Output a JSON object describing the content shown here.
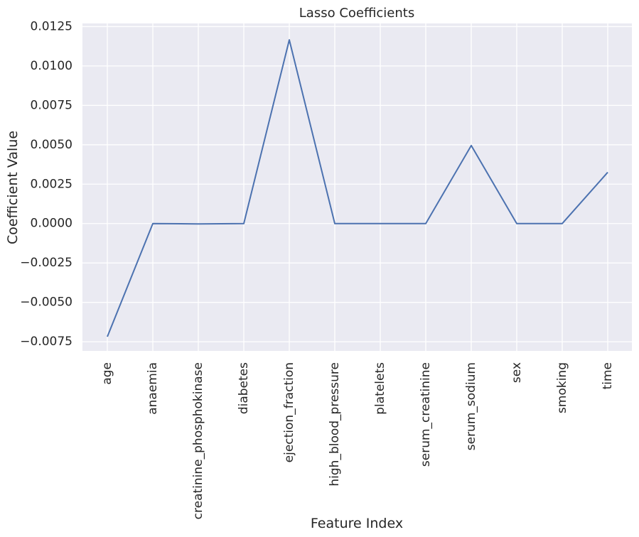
{
  "chart_data": {
    "type": "line",
    "title": "Lasso Coefficients",
    "xlabel": "Feature Index",
    "ylabel": "Coefficient Value",
    "categories": [
      "age",
      "anaemia",
      "creatinine_phosphokinase",
      "diabetes",
      "ejection_fraction",
      "high_blood_pressure",
      "platelets",
      "serum_creatinine",
      "serum_sodium",
      "sex",
      "smoking",
      "time"
    ],
    "series": [
      {
        "values": [
          -0.00718,
          0.0,
          -2e-05,
          0.0,
          0.01166,
          0.0,
          0.0,
          0.0,
          0.00495,
          0.0,
          0.0,
          0.00325
        ]
      }
    ],
    "yticks": [
      -0.0075,
      -0.005,
      -0.0025,
      0.0,
      0.0025,
      0.005,
      0.0075,
      0.01,
      0.0125
    ],
    "ytick_labels": [
      "−0.0075",
      "−0.0050",
      "−0.0025",
      "0.0000",
      "0.0025",
      "0.0050",
      "0.0075",
      "0.0100",
      "0.0125"
    ],
    "ylim": [
      -0.00808,
      0.0127
    ],
    "grid": true,
    "colors": {
      "background": "#eaeaf2",
      "grid": "#ffffff",
      "line": "#4c72b0"
    }
  }
}
